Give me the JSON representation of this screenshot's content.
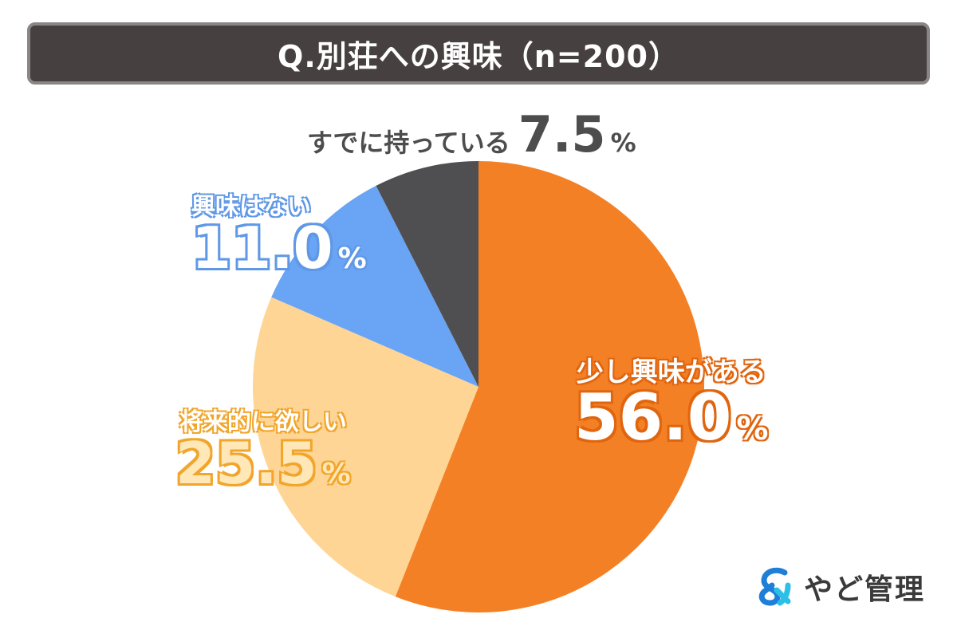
{
  "header": {
    "title": "Q.別荘への興味（n=200）"
  },
  "chart_data": {
    "type": "pie",
    "title": "Q.別荘への興味（n=200）",
    "slices": [
      {
        "label": "少し興味がある",
        "value": 56.0,
        "display": "56.0",
        "unit": "%",
        "color": "#f48025"
      },
      {
        "label": "将来的に欲しい",
        "value": 25.5,
        "display": "25.5",
        "unit": "%",
        "color": "#fed595"
      },
      {
        "label": "興味はない",
        "value": 11.0,
        "display": "11.0",
        "unit": "%",
        "color": "#6aa4f4"
      },
      {
        "label": "すでに持っている",
        "value": 7.5,
        "display": "7.5",
        "unit": "%",
        "color": "#4f4f51"
      }
    ]
  },
  "logo": {
    "text": "やど管理",
    "icon": "ampersand-logo-icon",
    "colors": [
      "#1f7fd6",
      "#2cc0e8"
    ]
  }
}
